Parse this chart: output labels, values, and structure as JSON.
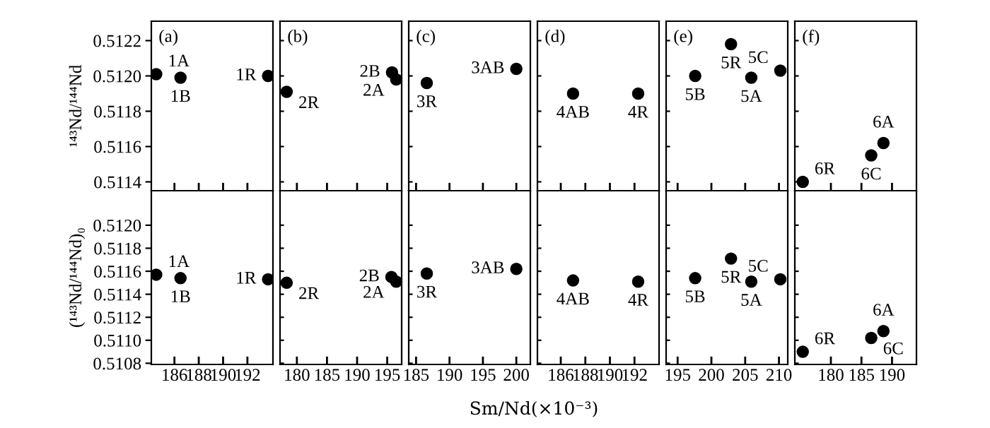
{
  "chart_data": [
    {
      "type": "scatter",
      "ylabel": "¹⁴³Nd/¹⁴⁴Nd",
      "x": [
        184.5,
        186.5,
        193.7
      ],
      "values": [
        0.51201,
        0.51199,
        0.512
      ],
      "color": "#000000",
      "marker": "circle",
      "xlim": [
        184.1,
        194.1
      ],
      "xticks": [
        186,
        188,
        190,
        192
      ],
      "ylim": [
        0.51135,
        0.51231
      ],
      "yticks": [
        {
          "value": 0.5114,
          "label": "0.5114"
        },
        {
          "value": 0.5116,
          "label": "0.5116"
        },
        {
          "value": 0.5118,
          "label": "0.5118"
        },
        {
          "value": 0.512,
          "label": "0.5120"
        },
        {
          "value": 0.5122,
          "label": "0.5122"
        }
      ],
      "tick_labels": "y",
      "annotations": [
        "(a)",
        {
          "text": "1A",
          "x": 184.5,
          "y": 0.51201
        },
        {
          "text": "1B",
          "x": 186.5,
          "y": 0.51199
        },
        {
          "text": "1R",
          "x": 193.7,
          "y": 0.512
        }
      ]
    },
    {
      "type": "scatter",
      "x": [
        178.3,
        195.8,
        196.5
      ],
      "values": [
        0.51191,
        0.51202,
        0.51198
      ],
      "color": "#000000",
      "marker": "circle",
      "xlim": [
        177.2,
        197.4
      ],
      "xticks": [
        180,
        185,
        190,
        195
      ],
      "ylim": [
        0.51135,
        0.51231
      ],
      "yticks": [
        0.5114,
        0.5116,
        0.5118,
        0.512,
        0.5122
      ],
      "tick_labels": false,
      "annotations": [
        "(b)",
        {
          "text": "2R",
          "x": 178.3,
          "y": 0.51191
        },
        {
          "text": "2B",
          "x": 195.8,
          "y": 0.51202
        },
        {
          "text": "2A",
          "x": 196.5,
          "y": 0.51198
        }
      ]
    },
    {
      "type": "scatter",
      "x": [
        186.6,
        200.0
      ],
      "values": [
        0.51196,
        0.51204
      ],
      "color": "#000000",
      "marker": "circle",
      "xlim": [
        183.9,
        202.1
      ],
      "xticks": [
        185,
        190,
        195,
        200
      ],
      "ylim": [
        0.51135,
        0.51231
      ],
      "yticks": [
        0.5114,
        0.5116,
        0.5118,
        0.512,
        0.5122
      ],
      "tick_labels": false,
      "annotations": [
        "(c)",
        {
          "text": "3R",
          "x": 186.6,
          "y": 0.51196
        },
        {
          "text": "3AB",
          "x": 200.0,
          "y": 0.51204
        }
      ]
    },
    {
      "type": "scatter",
      "x": [
        187.0,
        192.3
      ],
      "values": [
        0.5119,
        0.5119
      ],
      "color": "#000000",
      "marker": "circle",
      "xlim": [
        184.1,
        194.0
      ],
      "xticks": [
        186,
        188,
        190,
        192
      ],
      "ylim": [
        0.51135,
        0.51231
      ],
      "yticks": [
        0.5114,
        0.5116,
        0.5118,
        0.512,
        0.5122
      ],
      "tick_labels": false,
      "annotations": [
        "(d)",
        {
          "text": "4AB",
          "x": 187.0,
          "y": 0.5119
        },
        {
          "text": "4R",
          "x": 192.3,
          "y": 0.5119
        }
      ]
    },
    {
      "type": "scatter",
      "x": [
        197.6,
        202.9,
        205.9,
        210.2
      ],
      "values": [
        0.512,
        0.51218,
        0.51199,
        0.51203
      ],
      "color": "#000000",
      "marker": "circle",
      "xlim": [
        193.3,
        211.3
      ],
      "xticks": [
        195,
        200,
        205,
        210
      ],
      "ylim": [
        0.51135,
        0.51231
      ],
      "yticks": [
        0.5114,
        0.5116,
        0.5118,
        0.512,
        0.5122
      ],
      "tick_labels": false,
      "annotations": [
        "(e)",
        {
          "text": "5B",
          "x": 197.6,
          "y": 0.512
        },
        {
          "text": "5R",
          "x": 202.9,
          "y": 0.51218
        },
        {
          "text": "5A",
          "x": 205.9,
          "y": 0.51199
        },
        {
          "text": "5C",
          "x": 210.2,
          "y": 0.51203
        }
      ]
    },
    {
      "type": "scatter",
      "x": [
        175.4,
        186.6,
        188.6
      ],
      "values": [
        0.5114,
        0.51155,
        0.51162
      ],
      "color": "#000000",
      "marker": "circle",
      "xlim": [
        174.1,
        194.0
      ],
      "xticks": [
        180,
        185,
        190
      ],
      "ylim": [
        0.51135,
        0.51231
      ],
      "yticks": [
        0.5114,
        0.5116,
        0.5118,
        0.512,
        0.5122
      ],
      "tick_labels": false,
      "annotations": [
        "(f)",
        {
          "text": "6R",
          "x": 175.4,
          "y": 0.5114
        },
        {
          "text": "6C",
          "x": 186.6,
          "y": 0.51155
        },
        {
          "text": "6A",
          "x": 188.6,
          "y": 0.51162
        }
      ]
    },
    {
      "type": "scatter",
      "ylabel": "(¹⁴³Nd/¹⁴⁴Nd)₀",
      "x": [
        184.5,
        186.5,
        193.7
      ],
      "values": [
        0.51157,
        0.51154,
        0.51153
      ],
      "color": "#000000",
      "marker": "circle",
      "xlim": [
        184.1,
        194.1
      ],
      "xticks": [
        186,
        188,
        190,
        192
      ],
      "ylim": [
        0.51079,
        0.5123
      ],
      "yticks": [
        {
          "value": 0.5108,
          "label": "0.5108"
        },
        {
          "value": 0.511,
          "label": "0.5110"
        },
        {
          "value": 0.5112,
          "label": "0.5112"
        },
        {
          "value": 0.5114,
          "label": "0.5114"
        },
        {
          "value": 0.5116,
          "label": "0.5116"
        },
        {
          "value": 0.5118,
          "label": "0.5118"
        },
        {
          "value": 0.512,
          "label": "0.5120"
        }
      ],
      "annotations": [
        {
          "text": "1A",
          "x": 184.5,
          "y": 0.51157
        },
        {
          "text": "1B",
          "x": 186.5,
          "y": 0.51154
        },
        {
          "text": "1R",
          "x": 193.7,
          "y": 0.51153
        }
      ]
    },
    {
      "type": "scatter",
      "x": [
        178.3,
        195.7,
        196.5
      ],
      "values": [
        0.5115,
        0.51155,
        0.51151
      ],
      "color": "#000000",
      "marker": "circle",
      "xlim": [
        177.2,
        197.4
      ],
      "xticks": [
        180,
        185,
        190,
        195
      ],
      "ylim": [
        0.51079,
        0.5123
      ],
      "yticks": [
        0.5108,
        0.511,
        0.5112,
        0.5114,
        0.5116,
        0.5118,
        0.512
      ],
      "tick_labels": "x",
      "annotations": [
        {
          "text": "2R",
          "x": 178.3,
          "y": 0.5115
        },
        {
          "text": "2B",
          "x": 195.7,
          "y": 0.51155
        },
        {
          "text": "2A",
          "x": 196.5,
          "y": 0.51151
        }
      ]
    },
    {
      "type": "scatter",
      "xlabel": "Sm/Nd(×10⁻³)",
      "x": [
        186.6,
        200.0
      ],
      "values": [
        0.51158,
        0.51162
      ],
      "color": "#000000",
      "marker": "circle",
      "xlim": [
        183.9,
        202.1
      ],
      "xticks": [
        185,
        190,
        195,
        200
      ],
      "ylim": [
        0.51079,
        0.5123
      ],
      "yticks": [
        0.5108,
        0.511,
        0.5112,
        0.5114,
        0.5116,
        0.5118,
        0.512
      ],
      "tick_labels": "x",
      "annotations": [
        {
          "text": "3R",
          "x": 186.6,
          "y": 0.51158
        },
        {
          "text": "3AB",
          "x": 200.0,
          "y": 0.51162
        }
      ]
    },
    {
      "type": "scatter",
      "x": [
        187.0,
        192.3
      ],
      "values": [
        0.51152,
        0.51151
      ],
      "color": "#000000",
      "marker": "circle",
      "xlim": [
        184.1,
        194.0
      ],
      "xticks": [
        186,
        188,
        190,
        192
      ],
      "ylim": [
        0.51079,
        0.5123
      ],
      "yticks": [
        0.5108,
        0.511,
        0.5112,
        0.5114,
        0.5116,
        0.5118,
        0.512
      ],
      "tick_labels": "x",
      "annotations": [
        {
          "text": "4AB",
          "x": 187.0,
          "y": 0.51152
        },
        {
          "text": "4R",
          "x": 192.3,
          "y": 0.51151
        }
      ]
    },
    {
      "type": "scatter",
      "x": [
        197.6,
        202.9,
        205.9,
        210.2
      ],
      "values": [
        0.51154,
        0.51171,
        0.51151,
        0.51153
      ],
      "color": "#000000",
      "marker": "circle",
      "xlim": [
        193.3,
        211.3
      ],
      "xticks": [
        195,
        200,
        205,
        210
      ],
      "ylim": [
        0.51079,
        0.5123
      ],
      "yticks": [
        0.5108,
        0.511,
        0.5112,
        0.5114,
        0.5116,
        0.5118,
        0.512
      ],
      "tick_labels": "x",
      "annotations": [
        {
          "text": "5B",
          "x": 197.6,
          "y": 0.51154
        },
        {
          "text": "5R",
          "x": 202.9,
          "y": 0.51171
        },
        {
          "text": "5A",
          "x": 205.9,
          "y": 0.51151
        },
        {
          "text": "5C",
          "x": 210.2,
          "y": 0.51153
        }
      ]
    },
    {
      "type": "scatter",
      "x": [
        175.4,
        186.6,
        188.6
      ],
      "values": [
        0.5109,
        0.51102,
        0.51108
      ],
      "color": "#000000",
      "marker": "circle",
      "xlim": [
        174.1,
        194.0
      ],
      "xticks": [
        180,
        185,
        190
      ],
      "ylim": [
        0.51079,
        0.5123
      ],
      "yticks": [
        0.5108,
        0.511,
        0.5112,
        0.5114,
        0.5116,
        0.5118,
        0.512
      ],
      "tick_labels": "x",
      "annotations": [
        {
          "text": "6R",
          "x": 175.4,
          "y": 0.5109
        },
        {
          "text": "6C",
          "x": 186.6,
          "y": 0.51102
        },
        {
          "text": "6A",
          "x": 188.6,
          "y": 0.51108
        }
      ]
    }
  ]
}
